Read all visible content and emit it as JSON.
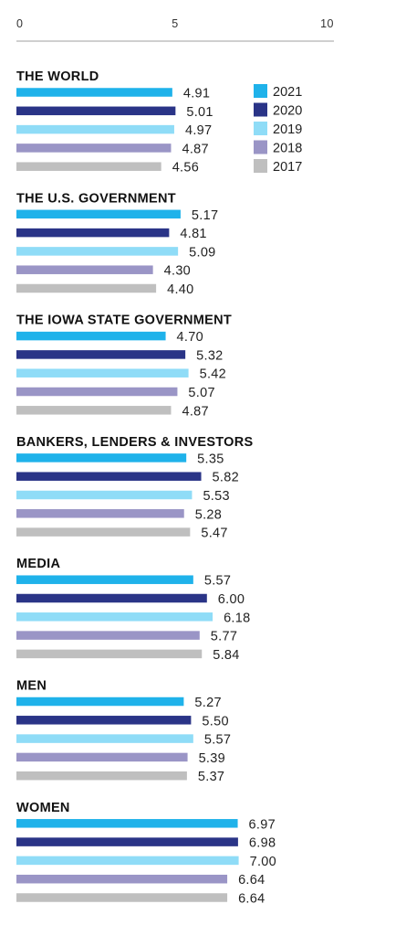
{
  "chart_data": {
    "type": "bar",
    "orientation": "horizontal",
    "xlim": [
      0,
      10
    ],
    "xticks": [
      "0",
      "5",
      "10"
    ],
    "legend_placement": "top-right",
    "series": [
      {
        "name": "2021",
        "color": "#1fb2ea"
      },
      {
        "name": "2020",
        "color": "#2a3487"
      },
      {
        "name": "2019",
        "color": "#8fdcf7"
      },
      {
        "name": "2018",
        "color": "#9a95c6"
      },
      {
        "name": "2017",
        "color": "#bfbfbf"
      }
    ],
    "groups": [
      {
        "label": "THE WORLD",
        "values": [
          4.91,
          5.01,
          4.97,
          4.87,
          4.56
        ],
        "value_labels": [
          "4.91",
          "5.01",
          "4.97",
          "4.87",
          "4.56"
        ]
      },
      {
        "label": "THE U.S. GOVERNMENT",
        "values": [
          5.17,
          4.81,
          5.09,
          4.3,
          4.4
        ],
        "value_labels": [
          "5.17",
          "4.81",
          "5.09",
          "4.30",
          "4.40"
        ]
      },
      {
        "label": "THE IOWA STATE GOVERNMENT",
        "values": [
          4.7,
          5.32,
          5.42,
          5.07,
          4.87
        ],
        "value_labels": [
          "4.70",
          "5.32",
          "5.42",
          "5.07",
          "4.87"
        ]
      },
      {
        "label": "BANKERS, LENDERS & INVESTORS",
        "values": [
          5.35,
          5.82,
          5.53,
          5.28,
          5.47
        ],
        "value_labels": [
          "5.35",
          "5.82",
          "5.53",
          "5.28",
          "5.47"
        ]
      },
      {
        "label": "MEDIA",
        "values": [
          5.57,
          6.0,
          6.18,
          5.77,
          5.84
        ],
        "value_labels": [
          "5.57",
          "6.00",
          "6.18",
          "5.77",
          "5.84"
        ]
      },
      {
        "label": "MEN",
        "values": [
          5.27,
          5.5,
          5.57,
          5.39,
          5.37
        ],
        "value_labels": [
          "5.27",
          "5.50",
          "5.57",
          "5.39",
          "5.37"
        ]
      },
      {
        "label": "WOMEN",
        "values": [
          6.97,
          6.98,
          7.0,
          6.64,
          6.64
        ],
        "value_labels": [
          "6.97",
          "6.98",
          "7.00",
          "6.64",
          "6.64"
        ]
      }
    ]
  }
}
